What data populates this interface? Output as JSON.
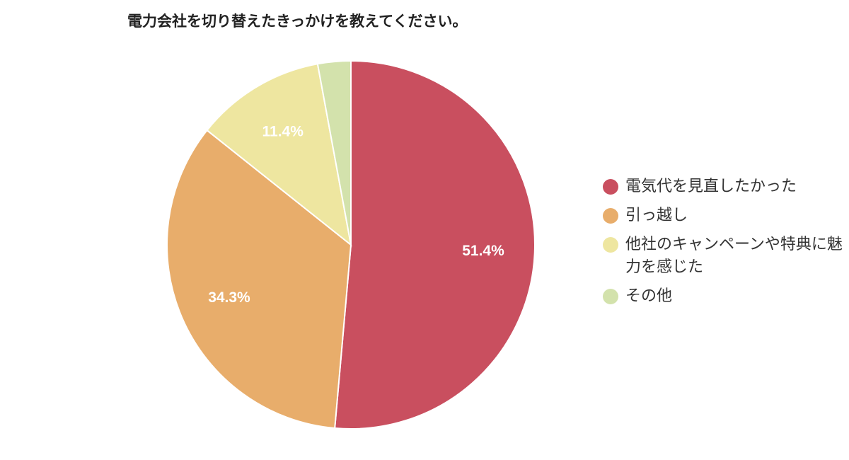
{
  "title": "電力会社を切り替えたきっかけを教えてください。",
  "chart_data": {
    "type": "pie",
    "title": "電力会社を切り替えたきっかけを教えてください。",
    "categories": [
      "電気代を見直したかった",
      "引っ越し",
      "他社のキャンペーンや特典に魅力を感じた",
      "その他"
    ],
    "values": [
      51.4,
      34.3,
      11.4,
      2.9
    ],
    "labels": [
      "51.4%",
      "34.3%",
      "11.4%",
      ""
    ],
    "colors": [
      "#c94f5f",
      "#e8ad6b",
      "#eee6a0",
      "#d3e2ac"
    ],
    "legend_position": "right",
    "start_angle": "12 o'clock, clockwise"
  },
  "legend": {
    "items": [
      {
        "label": "電気代を見直したかった",
        "color": "#c94f5f"
      },
      {
        "label": "引っ越し",
        "color": "#e8ad6b"
      },
      {
        "label": "他社のキャンペーンや特典に魅力を感じた",
        "color": "#eee6a0"
      },
      {
        "label": "その他",
        "color": "#d3e2ac"
      }
    ]
  }
}
